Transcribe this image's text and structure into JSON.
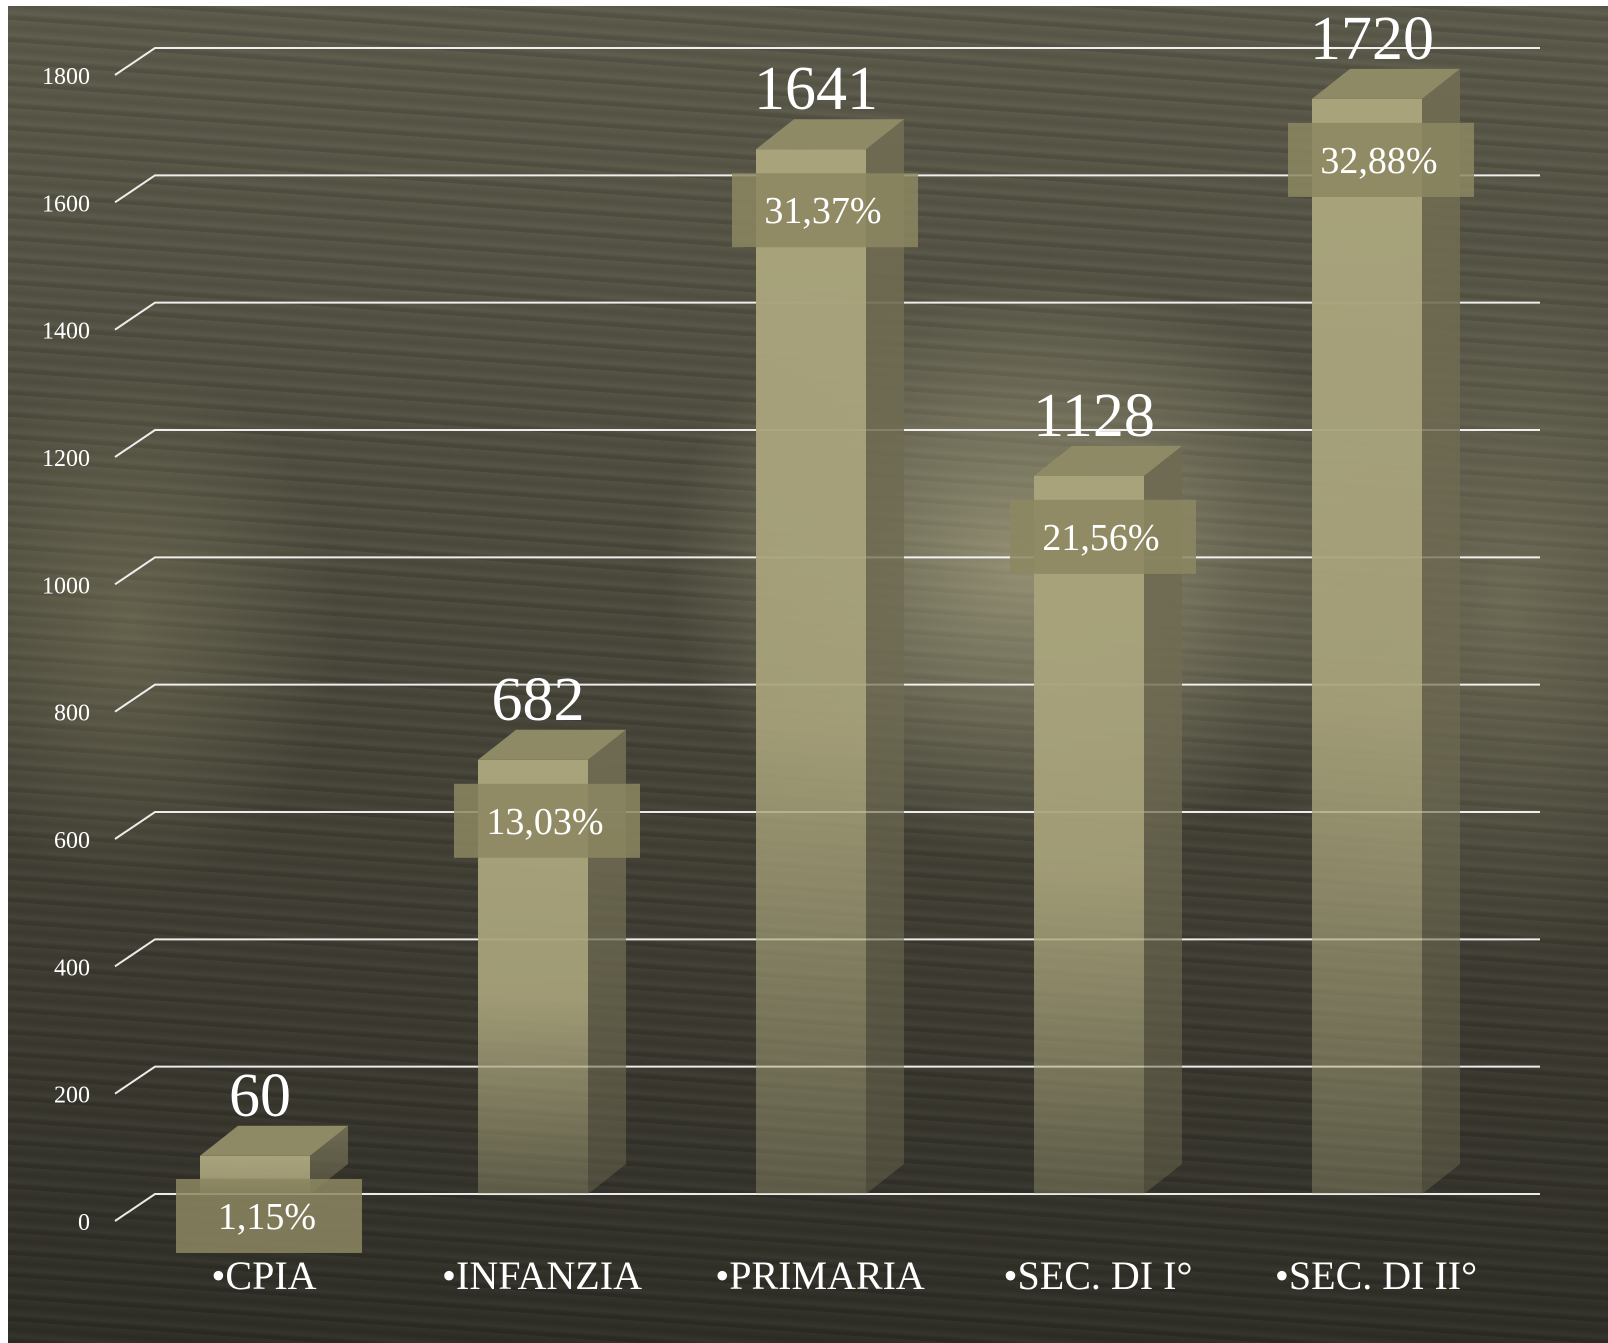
{
  "chart_data": {
    "type": "bar",
    "categories": [
      "•CPIA",
      "•INFANZIA",
      "•PRIMARIA",
      "•SEC. DI I°",
      "•SEC. DI II°"
    ],
    "values": [
      60,
      682,
      1641,
      1128,
      1720
    ],
    "value_labels": [
      "60",
      "682",
      "1641",
      "1128",
      "1720"
    ],
    "percent_labels": [
      "1,15%",
      "13,03%",
      "31,37%",
      "21,56%",
      "32,88%"
    ],
    "y_ticks": [
      0,
      200,
      400,
      600,
      800,
      1000,
      1200,
      1400,
      1600,
      1800
    ],
    "ylim": [
      0,
      1800
    ],
    "grid": true,
    "three_d": true,
    "colors": {
      "bar_front": "#a8a37b",
      "bar_side": "#6f6b52",
      "bar_top": "#8f8a66",
      "label_box": "#8c8762",
      "grid": "#ffffff",
      "text": "#ffffff"
    }
  }
}
